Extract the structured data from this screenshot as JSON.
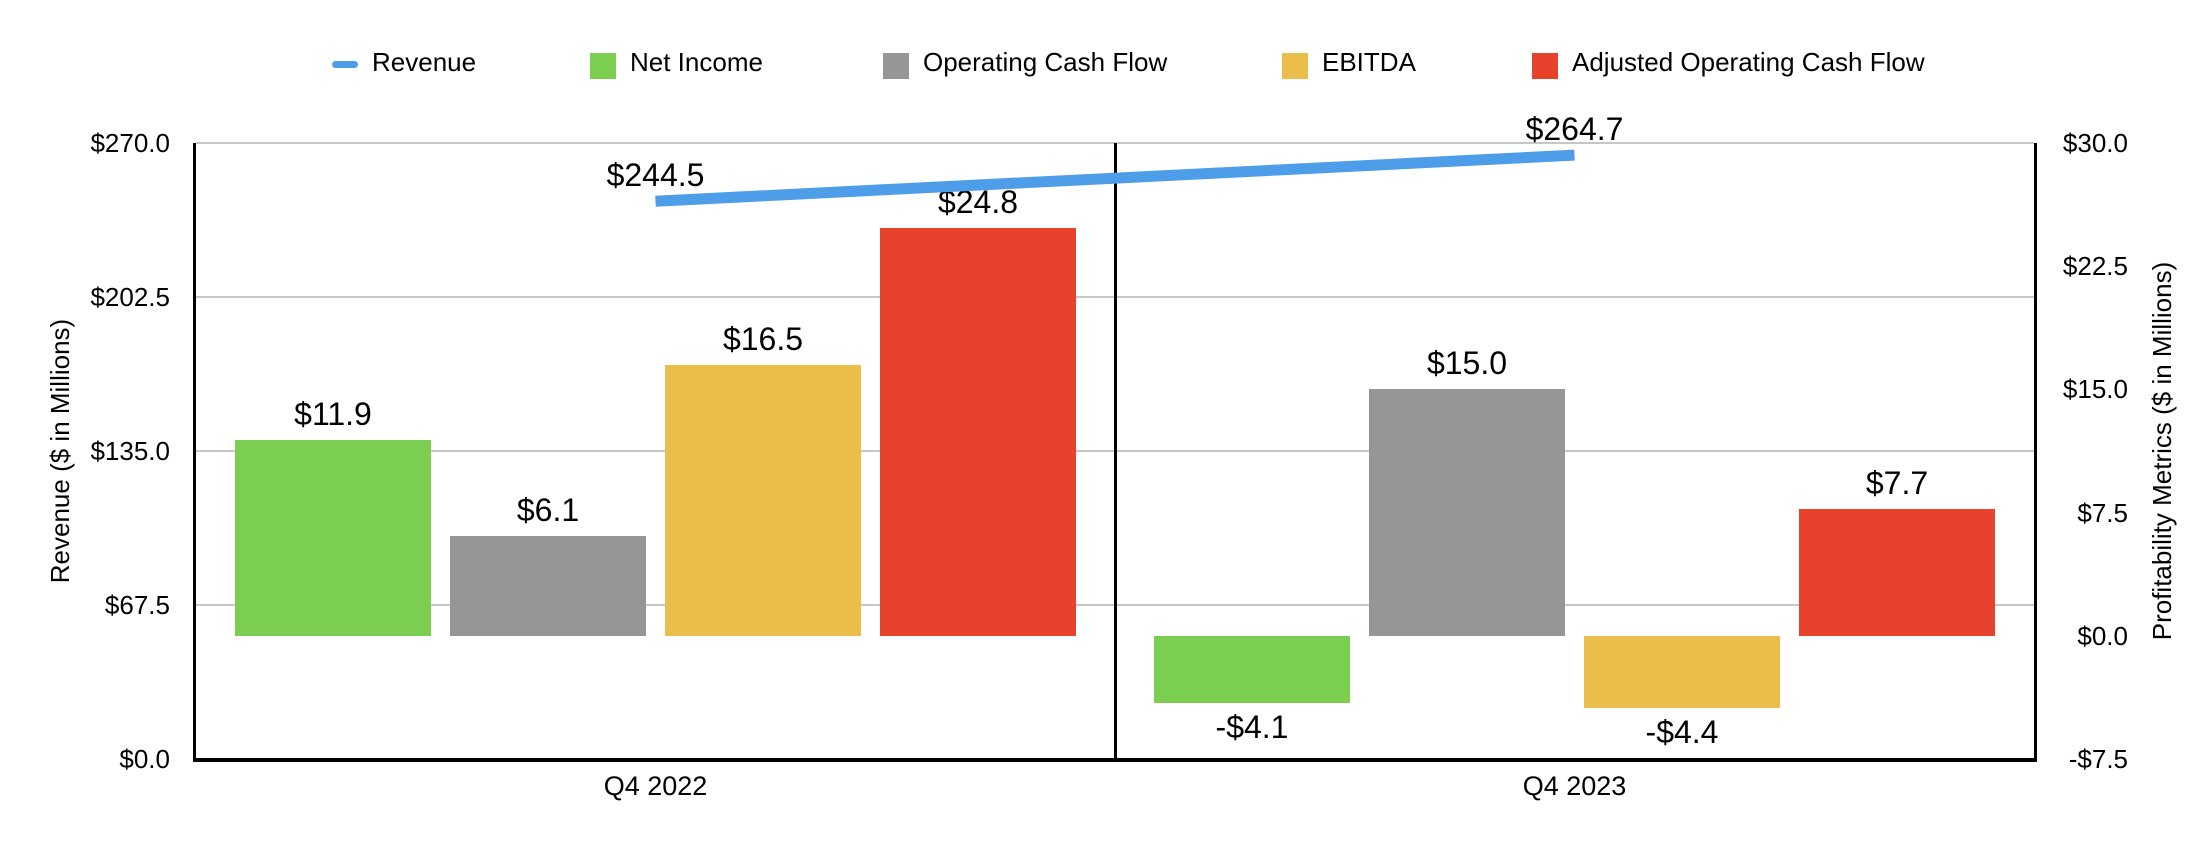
{
  "legend": {
    "items": [
      {
        "label": "Revenue",
        "swatch": "line",
        "color": "#4E9DE9"
      },
      {
        "label": "Net Income",
        "swatch": "square",
        "color": "#7BCE50"
      },
      {
        "label": "Operating Cash Flow",
        "swatch": "square",
        "color": "#969696"
      },
      {
        "label": "EBITDA",
        "swatch": "square",
        "color": "#EBBE4C"
      },
      {
        "label": "Adjusted Operating Cash Flow",
        "swatch": "square",
        "color": "#E7422B"
      }
    ]
  },
  "chart_data": {
    "type": "combo-bar-line",
    "categories": [
      "Q4 2022",
      "Q4 2023"
    ],
    "bar_series": [
      {
        "name": "Net Income",
        "color": "#7BCE50",
        "axis": "right",
        "values": [
          11.9,
          -4.1
        ],
        "labels": [
          "$11.9",
          "-$4.1"
        ]
      },
      {
        "name": "Operating Cash Flow",
        "color": "#969696",
        "axis": "right",
        "values": [
          6.1,
          15.0
        ],
        "labels": [
          "$6.1",
          "$15.0"
        ]
      },
      {
        "name": "EBITDA",
        "color": "#EBBE4C",
        "axis": "right",
        "values": [
          16.5,
          -4.4
        ],
        "labels": [
          "$16.5",
          "-$4.4"
        ]
      },
      {
        "name": "Adjusted Operating Cash Flow",
        "color": "#E7422B",
        "axis": "right",
        "values": [
          24.8,
          7.7
        ],
        "labels": [
          "$24.8",
          "$7.7"
        ]
      }
    ],
    "line_series": {
      "name": "Revenue",
      "color": "#4E9DE9",
      "axis": "left",
      "values": [
        244.5,
        264.7
      ],
      "labels": [
        "$244.5",
        "$264.7"
      ]
    },
    "left_axis": {
      "title": "Revenue ($ in Millions)",
      "min": 0,
      "max": 270,
      "ticks": [
        {
          "value": 270,
          "label": "$270.0"
        },
        {
          "value": 202.5,
          "label": "$202.5"
        },
        {
          "value": 135,
          "label": "$135.0"
        },
        {
          "value": 67.5,
          "label": "$67.5"
        },
        {
          "value": 0,
          "label": "$0.0"
        }
      ]
    },
    "right_axis": {
      "title": "Profitability Metrics ($ in Millions)",
      "min": -7.5,
      "max": 30,
      "ticks": [
        {
          "value": 30,
          "label": "$30.0"
        },
        {
          "value": 22.5,
          "label": "$22.5"
        },
        {
          "value": 15,
          "label": "$15.0"
        },
        {
          "value": 7.5,
          "label": "$7.5"
        },
        {
          "value": 0,
          "label": "$0.0"
        },
        {
          "value": -7.5,
          "label": "-$7.5"
        }
      ]
    },
    "grid": true,
    "legend_position": "top",
    "gridline_color": "#C6C6C6",
    "axis_color": "#000000",
    "label_color": "#000000"
  }
}
